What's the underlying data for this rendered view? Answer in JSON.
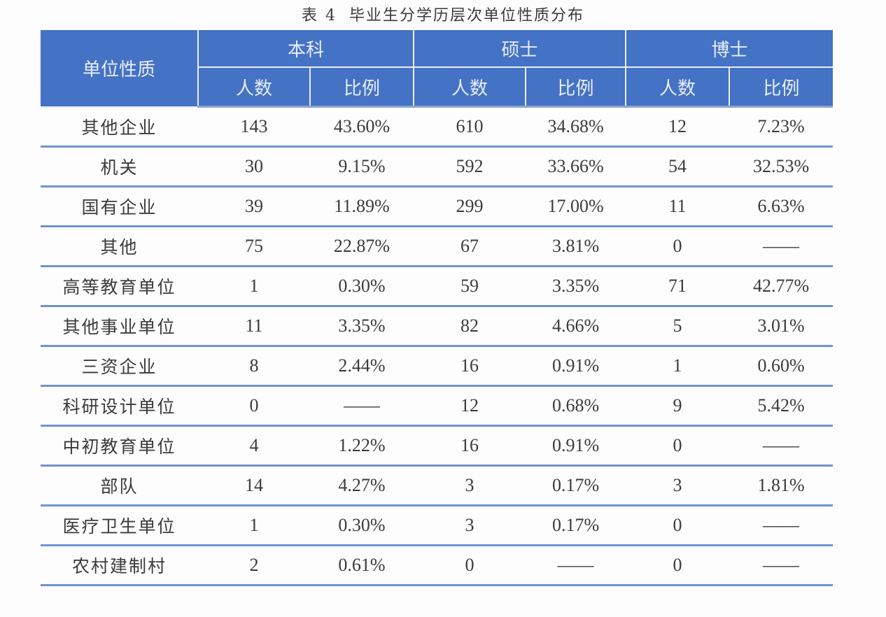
{
  "title": {
    "prefix": "表",
    "number": "4",
    "text": "毕业生分学历层次单位性质分布"
  },
  "header": {
    "row_label": "单位性质",
    "groups": [
      "本科",
      "硕士",
      "博士"
    ],
    "sub": [
      "人数",
      "比例",
      "人数",
      "比例",
      "人数",
      "比例"
    ]
  },
  "rows": [
    {
      "name": "其他企业",
      "values": [
        "143",
        "43.60%",
        "610",
        "34.68%",
        "12",
        "7.23%"
      ]
    },
    {
      "name": "机关",
      "values": [
        "30",
        "9.15%",
        "592",
        "33.66%",
        "54",
        "32.53%"
      ]
    },
    {
      "name": "国有企业",
      "values": [
        "39",
        "11.89%",
        "299",
        "17.00%",
        "11",
        "6.63%"
      ]
    },
    {
      "name": "其他",
      "values": [
        "75",
        "22.87%",
        "67",
        "3.81%",
        "0",
        "——"
      ]
    },
    {
      "name": "高等教育单位",
      "values": [
        "1",
        "0.30%",
        "59",
        "3.35%",
        "71",
        "42.77%"
      ]
    },
    {
      "name": "其他事业单位",
      "values": [
        "11",
        "3.35%",
        "82",
        "4.66%",
        "5",
        "3.01%"
      ]
    },
    {
      "name": "三资企业",
      "values": [
        "8",
        "2.44%",
        "16",
        "0.91%",
        "1",
        "0.60%"
      ]
    },
    {
      "name": "科研设计单位",
      "values": [
        "0",
        "——",
        "12",
        "0.68%",
        "9",
        "5.42%"
      ]
    },
    {
      "name": "中初教育单位",
      "values": [
        "4",
        "1.22%",
        "16",
        "0.91%",
        "0",
        "——"
      ]
    },
    {
      "name": "部队",
      "values": [
        "14",
        "4.27%",
        "3",
        "0.17%",
        "3",
        "1.81%"
      ]
    },
    {
      "name": "医疗卫生单位",
      "values": [
        "1",
        "0.30%",
        "3",
        "0.17%",
        "0",
        "——"
      ]
    },
    {
      "name": "农村建制村",
      "values": [
        "2",
        "0.61%",
        "0",
        "——",
        "0",
        "——"
      ]
    }
  ],
  "colors": {
    "header_bg": "#4472c4",
    "header_text": "#e8eefa",
    "row_rule": "#6f93cf"
  }
}
